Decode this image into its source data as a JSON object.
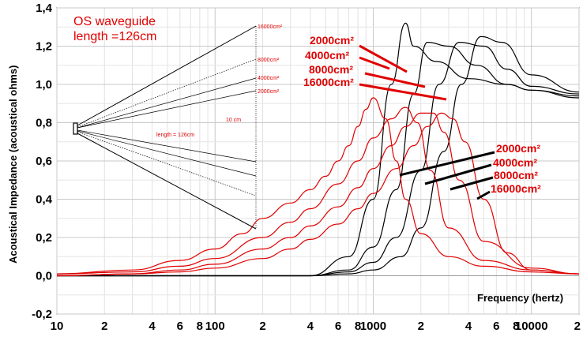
{
  "chart_data": {
    "type": "line",
    "title": "OS waveguide",
    "subtitle": "length =126cm",
    "xlabel": "Frequency (hertz)",
    "ylabel": "Acoustical Impedance (acoustical ohms)",
    "xscale": "log",
    "xlim": [
      10,
      20000
    ],
    "ylim": [
      -0.2,
      1.4
    ],
    "y_ticks": [
      "-0,2",
      "0,0",
      "0,2",
      "0,4",
      "0,6",
      "0,8",
      "1,0",
      "1,2",
      "1,4"
    ],
    "y_tick_values": [
      -0.2,
      0,
      0.2,
      0.4,
      0.6,
      0.8,
      1.0,
      1.2,
      1.4
    ],
    "x_ticks": [
      {
        "v": 10,
        "label": "10"
      },
      {
        "v": 20,
        "label": "2"
      },
      {
        "v": 40,
        "label": "4"
      },
      {
        "v": 60,
        "label": "6"
      },
      {
        "v": 80,
        "label": "8"
      },
      {
        "v": 100,
        "label": "100"
      },
      {
        "v": 200,
        "label": "2"
      },
      {
        "v": 400,
        "label": "4"
      },
      {
        "v": 600,
        "label": "6"
      },
      {
        "v": 800,
        "label": "8"
      },
      {
        "v": 1000,
        "label": "1000"
      },
      {
        "v": 2000,
        "label": "2"
      },
      {
        "v": 4000,
        "label": "4"
      },
      {
        "v": 6000,
        "label": "6"
      },
      {
        "v": 8000,
        "label": "8"
      },
      {
        "v": 10000,
        "label": "10000"
      },
      {
        "v": 20000,
        "label": "2"
      }
    ],
    "grid": true,
    "series": [
      {
        "name": "2000cm²",
        "component": "real",
        "color": "#000000",
        "x": [
          10,
          100,
          200,
          400,
          700,
          1000,
          1300,
          1600,
          1800,
          2500,
          4000,
          7000,
          10000,
          20000
        ],
        "y": [
          0,
          0,
          0,
          0,
          0.1,
          0.4,
          1.0,
          1.32,
          1.2,
          1.12,
          1.03,
          1.0,
          0.97,
          0.93
        ]
      },
      {
        "name": "4000cm²",
        "component": "real",
        "color": "#000000",
        "x": [
          10,
          100,
          200,
          400,
          700,
          1000,
          1400,
          1800,
          2200,
          3000,
          4500,
          7000,
          10000,
          20000
        ],
        "y": [
          0,
          0,
          0,
          0,
          0.03,
          0.15,
          0.45,
          0.95,
          1.22,
          1.2,
          1.1,
          1.0,
          0.97,
          0.94
        ]
      },
      {
        "name": "8000cm²",
        "component": "real",
        "color": "#000000",
        "x": [
          10,
          100,
          200,
          400,
          700,
          1000,
          1400,
          2000,
          2600,
          3500,
          5000,
          7000,
          10000,
          20000
        ],
        "y": [
          0,
          0,
          0,
          0,
          0.02,
          0.07,
          0.2,
          0.55,
          1.0,
          1.22,
          1.2,
          1.08,
          0.99,
          0.95
        ]
      },
      {
        "name": "16000cm²",
        "component": "real",
        "color": "#000000",
        "x": [
          10,
          100,
          200,
          400,
          700,
          1000,
          1500,
          2000,
          2800,
          3600,
          4800,
          6500,
          10000,
          20000
        ],
        "y": [
          0,
          0,
          0,
          0,
          0.01,
          0.03,
          0.1,
          0.25,
          0.65,
          1.0,
          1.25,
          1.22,
          1.05,
          0.96
        ]
      },
      {
        "name": "2000cm²",
        "component": "imaginary",
        "color": "#e00000",
        "x": [
          10,
          30,
          60,
          100,
          150,
          200,
          300,
          400,
          500,
          600,
          700,
          800,
          900,
          1000,
          1200,
          1400,
          1600,
          2000,
          3000,
          5000,
          10000,
          20000
        ],
        "y": [
          0.01,
          0.03,
          0.08,
          0.14,
          0.22,
          0.3,
          0.38,
          0.45,
          0.52,
          0.6,
          0.68,
          0.78,
          0.87,
          0.93,
          0.82,
          0.6,
          0.4,
          0.22,
          0.1,
          0.05,
          0.02,
          0.01
        ]
      },
      {
        "name": "4000cm²",
        "component": "imaginary",
        "color": "#e00000",
        "x": [
          10,
          30,
          60,
          100,
          200,
          300,
          400,
          600,
          800,
          1000,
          1300,
          1600,
          1900,
          2300,
          3000,
          5000,
          10000,
          20000
        ],
        "y": [
          0.01,
          0.02,
          0.05,
          0.09,
          0.2,
          0.28,
          0.35,
          0.48,
          0.6,
          0.72,
          0.82,
          0.88,
          0.8,
          0.55,
          0.25,
          0.08,
          0.03,
          0.01
        ]
      },
      {
        "name": "8000cm²",
        "component": "imaginary",
        "color": "#e00000",
        "x": [
          10,
          30,
          60,
          100,
          200,
          300,
          400,
          600,
          800,
          1000,
          1300,
          1600,
          2000,
          2400,
          2800,
          3500,
          5000,
          10000,
          20000
        ],
        "y": [
          0,
          0.01,
          0.03,
          0.06,
          0.14,
          0.2,
          0.26,
          0.36,
          0.46,
          0.56,
          0.68,
          0.78,
          0.85,
          0.85,
          0.75,
          0.5,
          0.18,
          0.04,
          0.01
        ]
      },
      {
        "name": "16000cm²",
        "component": "imaginary",
        "color": "#e00000",
        "x": [
          10,
          30,
          60,
          100,
          200,
          300,
          400,
          600,
          800,
          1000,
          1400,
          1800,
          2200,
          2700,
          3200,
          3800,
          5000,
          7000,
          10000,
          20000
        ],
        "y": [
          0,
          0.01,
          0.02,
          0.04,
          0.09,
          0.14,
          0.19,
          0.27,
          0.35,
          0.43,
          0.56,
          0.68,
          0.78,
          0.85,
          0.82,
          0.7,
          0.4,
          0.12,
          0.03,
          0.01
        ]
      }
    ],
    "legend_real": {
      "labels": [
        "2000cm²",
        "4000cm²",
        "8000cm²",
        "16000cm²"
      ],
      "placement": "top-center"
    },
    "legend_imaginary": {
      "labels": [
        "2000cm²",
        "4000cm²",
        "8000cm²",
        "16000cm²"
      ],
      "placement": "right"
    },
    "inset_diagram": {
      "area_labels": [
        "16000cm²",
        "8000cm²",
        "4000cm²",
        "2000cm²"
      ],
      "length_label": "length = 126cm",
      "mouth_label": "10 cm"
    }
  }
}
